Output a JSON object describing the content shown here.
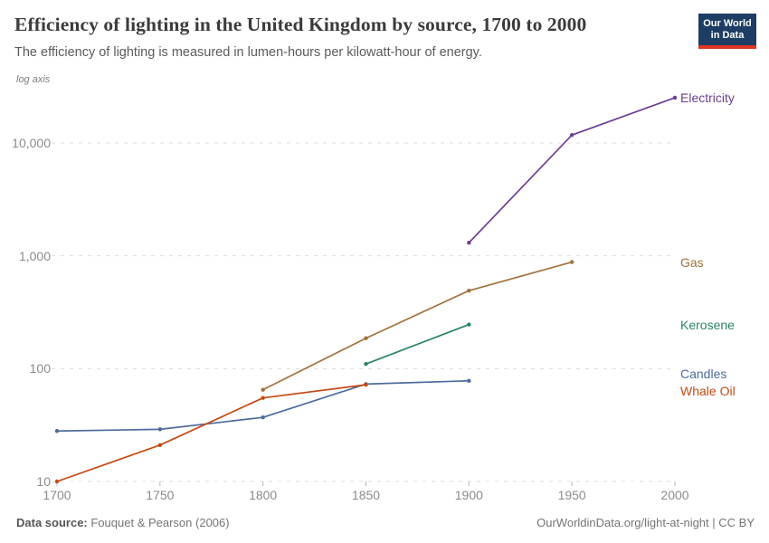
{
  "header": {
    "title": "Efficiency of lighting in the United Kingdom by source, 1700 to 2000",
    "subtitle": "The efficiency of lighting is measured in lumen-hours per kilowatt-hour of energy."
  },
  "logo": {
    "line1": "Our World",
    "line2": "in Data",
    "bg_color": "#1d3d63",
    "bar_color": "#e0351f"
  },
  "chart_data": {
    "type": "line",
    "title": "Efficiency of lighting in the United Kingdom by source, 1700 to 2000",
    "ylabel": "lumen-hours per kilowatt-hour of energy",
    "axis_note": "log axis",
    "y_scale": "log",
    "grid": "dashed-horizontal",
    "legend_position": "right-of-line-ends",
    "x_ticks": [
      1700,
      1750,
      1800,
      1850,
      1900,
      1950,
      2000
    ],
    "y_ticks": [
      {
        "value": 10,
        "label": "10"
      },
      {
        "value": 100,
        "label": "100"
      },
      {
        "value": 1000,
        "label": "1,000"
      },
      {
        "value": 10000,
        "label": "10,000"
      }
    ],
    "x_range": [
      1700,
      2000
    ],
    "y_range": [
      10,
      30000
    ],
    "series": [
      {
        "name": "Electricity",
        "color": "#6d3e91",
        "points": [
          [
            1900,
            1306
          ],
          [
            1950,
            11762
          ],
          [
            2000,
            25185
          ]
        ]
      },
      {
        "name": "Gas",
        "color": "#a2713b",
        "points": [
          [
            1800,
            65
          ],
          [
            1850,
            186
          ],
          [
            1900,
            491
          ],
          [
            1950,
            881
          ]
        ]
      },
      {
        "name": "Kerosene",
        "color": "#2c8465",
        "points": [
          [
            1850,
            110
          ],
          [
            1900,
            246
          ]
        ]
      },
      {
        "name": "Candles",
        "color": "#4c6a9c",
        "points": [
          [
            1700,
            28
          ],
          [
            1750,
            29
          ],
          [
            1800,
            37
          ],
          [
            1850,
            73
          ],
          [
            1900,
            78
          ]
        ]
      },
      {
        "name": "Whale Oil",
        "color": "#c54a14",
        "points": [
          [
            1700,
            10
          ],
          [
            1750,
            21
          ],
          [
            1800,
            55
          ],
          [
            1850,
            72
          ]
        ]
      }
    ]
  },
  "footer": {
    "source_label": "Data source:",
    "source_value": "Fouquet & Pearson (2006)",
    "link_text": "OurWorldinData.org/light-at-night",
    "license_text": "CC BY",
    "separator": " | "
  }
}
